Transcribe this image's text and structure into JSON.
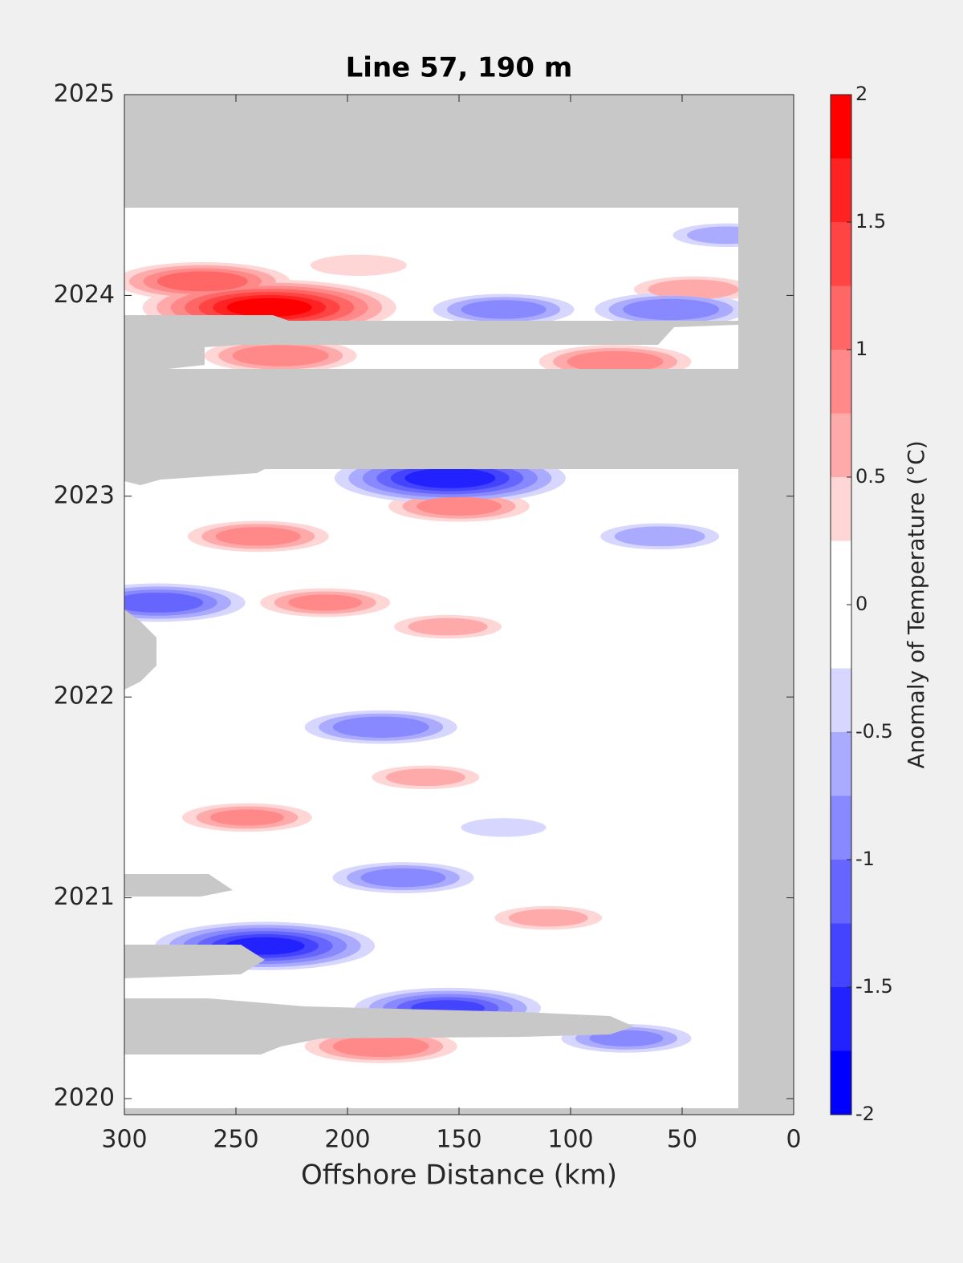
{
  "chart_data": {
    "type": "contour",
    "title": "Line 57, 190 m",
    "x_label": "Offshore Distance (km)",
    "colorbar_label": "Anomaly of Temperature (°C)",
    "xlim": [
      300,
      0
    ],
    "xticks": [
      300,
      250,
      200,
      150,
      100,
      50,
      0
    ],
    "ylim": [
      2019.92,
      2025
    ],
    "yticks": [
      2020,
      2021,
      2022,
      2023,
      2024,
      2025
    ],
    "clim": [
      -2,
      2
    ],
    "cticks": [
      -2,
      -1.5,
      -1,
      -0.5,
      0,
      0.5,
      1,
      1.5,
      2
    ],
    "colormap": [
      "#0000ff",
      "#2222ff",
      "#4444ff",
      "#6666ff",
      "#8888ff",
      "#aaaaff",
      "#d6d6ff",
      "#ffffff",
      "#ffffff",
      "#ffd6d6",
      "#ffaaaa",
      "#ff8888",
      "#ff6666",
      "#ff4444",
      "#ff2222",
      "#ff0000"
    ],
    "no_data_color": "#c8c8c8",
    "x": [
      235,
      265,
      185,
      150,
      240,
      210,
      45,
      80,
      230,
      154,
      237,
      285,
      155,
      185,
      175,
      55,
      130,
      60,
      75,
      130,
      245,
      165,
      110,
      155,
      195,
      30
    ],
    "y": [
      2023.94,
      2024.07,
      2020.26,
      2022.95,
      2022.8,
      2022.47,
      2024.03,
      2023.67,
      2023.7,
      2023.09,
      2020.76,
      2022.47,
      2020.45,
      2021.85,
      2021.1,
      2023.93,
      2023.93,
      2022.8,
      2020.3,
      2021.35,
      2021.4,
      2021.6,
      2020.9,
      2022.35,
      2024.15,
      2024.3
    ],
    "values": [
      1.9,
      1.2,
      1.0,
      0.9,
      0.9,
      0.8,
      0.7,
      1.0,
      1.0,
      -1.7,
      -1.6,
      -1.2,
      -1.3,
      -1.0,
      -0.9,
      -1.0,
      -0.9,
      -0.7,
      -0.8,
      -0.4,
      0.8,
      0.6,
      0.6,
      0.6,
      0.5,
      -0.6
    ]
  }
}
